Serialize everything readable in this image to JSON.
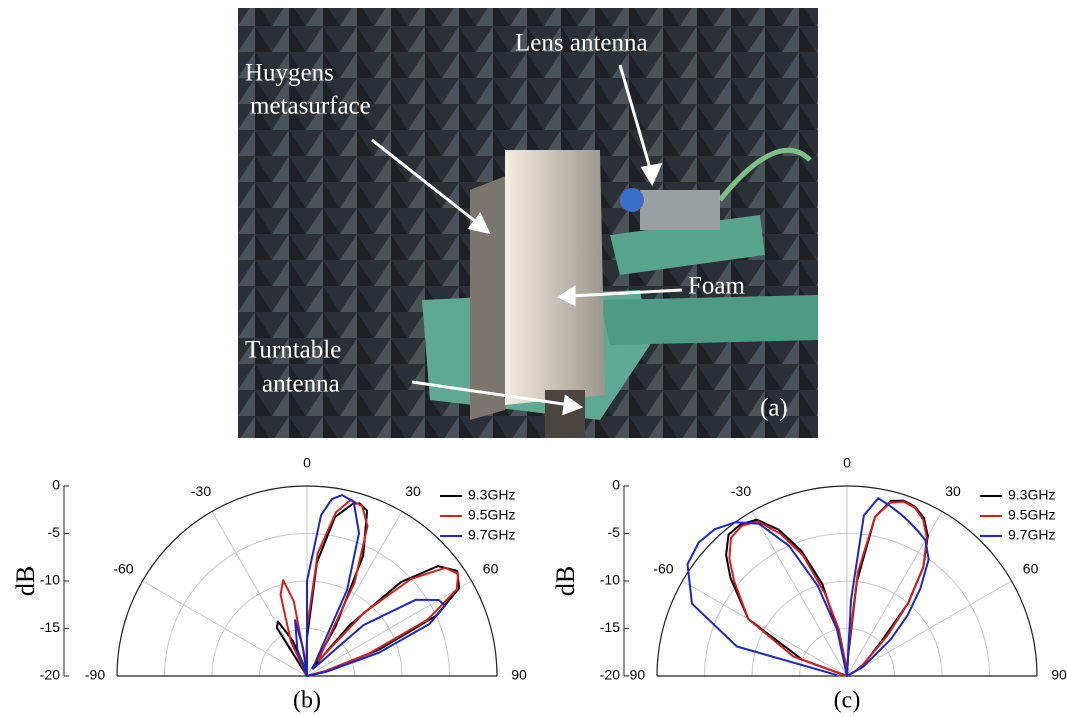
{
  "photo": {
    "labels": {
      "lens": "Lens antenna",
      "huygens": [
        "Huygens",
        "metasurface"
      ],
      "foam": "Foam",
      "turntable": [
        "Turntable",
        "antenna"
      ]
    },
    "panel_label": "(a)"
  },
  "chart_data": [
    {
      "type": "polar",
      "panel_label": "(b)",
      "y_label": "dB",
      "rlim": [
        -20,
        0
      ],
      "rticks": [
        0,
        -5,
        -10,
        -15,
        -20
      ],
      "thetalim": [
        -90,
        90
      ],
      "thetaticks": [
        -90,
        -60,
        -30,
        0,
        30,
        60,
        90
      ],
      "grid": true,
      "legend": "upper right",
      "series": [
        {
          "name": "9.3GHz",
          "color": "#000000",
          "x": [
            -40,
            -32,
            -28,
            -22,
            -15,
            -8,
            0,
            5,
            10,
            15,
            17,
            20,
            25,
            30,
            35,
            40,
            45,
            50,
            55,
            60,
            65,
            70,
            75,
            80
          ],
          "values": [
            -20,
            -14,
            -13.5,
            -16,
            -19,
            -20,
            -16,
            -8,
            -3,
            -1.2,
            -1,
            -1.5,
            -6,
            -14,
            -19,
            -13,
            -6,
            -2,
            -0.7,
            -1.5,
            -5,
            -12,
            -18,
            -20
          ]
        },
        {
          "name": "9.5GHz",
          "color": "#d42020",
          "x": [
            -40,
            -25,
            -18,
            -14,
            -10,
            -5,
            0,
            5,
            10,
            14,
            18,
            22,
            27,
            32,
            37,
            42,
            47,
            52,
            56,
            60,
            65,
            70,
            75,
            80
          ],
          "values": [
            -20,
            -16,
            -11,
            -9.6,
            -12,
            -19,
            -15,
            -7,
            -2.5,
            -0.9,
            -1.2,
            -3,
            -9,
            -17,
            -18,
            -11,
            -5,
            -1.5,
            -0.8,
            -1.8,
            -6,
            -13,
            -18,
            -20
          ]
        },
        {
          "name": "9.7GHz",
          "color": "#1c28c0",
          "x": [
            -30,
            -20,
            -12,
            -8,
            -4,
            0,
            5,
            8,
            11,
            15,
            20,
            25,
            30,
            40,
            48,
            55,
            60,
            63,
            67,
            72,
            78,
            85
          ],
          "values": [
            -20,
            -17,
            -14,
            -17,
            -20,
            -10,
            -3,
            -1.2,
            -0.6,
            -1,
            -4,
            -10,
            -18,
            -19,
            -12,
            -6,
            -4,
            -3.7,
            -6,
            -12,
            -18,
            -20
          ]
        }
      ]
    },
    {
      "type": "polar",
      "panel_label": "(c)",
      "y_label": "dB",
      "rlim": [
        -20,
        0
      ],
      "rticks": [
        0,
        -5,
        -10,
        -15,
        -20
      ],
      "thetalim": [
        -90,
        90
      ],
      "thetaticks": [
        -90,
        -60,
        -30,
        0,
        30,
        60,
        90
      ],
      "grid": true,
      "legend": "upper right",
      "series": [
        {
          "name": "9.3GHz",
          "color": "#000000",
          "x": [
            -80,
            -70,
            -60,
            -50,
            -45,
            -40,
            -35,
            -30,
            -25,
            -20,
            -15,
            -10,
            -5,
            0,
            3,
            6,
            10,
            14,
            18,
            22,
            26,
            30,
            35,
            40,
            45,
            50,
            55,
            60,
            70,
            80
          ],
          "values": [
            -20,
            -15,
            -8,
            -4,
            -2,
            -0.6,
            -0.5,
            -1,
            -3,
            -6,
            -10,
            -16,
            -20,
            -20,
            -18,
            -10,
            -3,
            -1,
            -0.6,
            -0.8,
            -1.5,
            -3,
            -6,
            -10,
            -15,
            -17,
            -18,
            -19,
            -20,
            -20
          ]
        },
        {
          "name": "9.5GHz",
          "color": "#d42020",
          "x": [
            -80,
            -70,
            -60,
            -50,
            -45,
            -40,
            -35,
            -30,
            -25,
            -20,
            -15,
            -10,
            -5,
            0,
            3,
            6,
            10,
            14,
            18,
            22,
            26,
            30,
            35,
            40,
            45,
            50,
            55,
            60,
            70,
            80
          ],
          "values": [
            -20,
            -14,
            -8,
            -4.5,
            -2.5,
            -1,
            -0.7,
            -1.2,
            -3.5,
            -6.5,
            -11,
            -15,
            -19,
            -20,
            -17,
            -9,
            -3,
            -1.2,
            -0.7,
            -0.9,
            -1.7,
            -3.2,
            -6,
            -10,
            -14,
            -17,
            -18,
            -19,
            -20,
            -20
          ]
        },
        {
          "name": "9.7GHz",
          "color": "#1c28c0",
          "x": [
            -85,
            -75,
            -65,
            -55,
            -48,
            -42,
            -36,
            -30,
            -24,
            -18,
            -12,
            -6,
            0,
            3,
            6,
            10,
            14,
            18,
            22,
            26,
            30,
            35,
            40,
            45,
            50,
            55,
            60,
            70,
            80
          ],
          "values": [
            -19,
            -8,
            -2,
            0.5,
            1,
            0.8,
            0,
            -1.5,
            -5,
            -10,
            -15,
            -20,
            -20,
            -12,
            -3,
            -1,
            -1.5,
            -2,
            -2.5,
            -3,
            -3.5,
            -5,
            -8,
            -11,
            -14,
            -17,
            -18,
            -20,
            -20
          ]
        }
      ]
    }
  ]
}
